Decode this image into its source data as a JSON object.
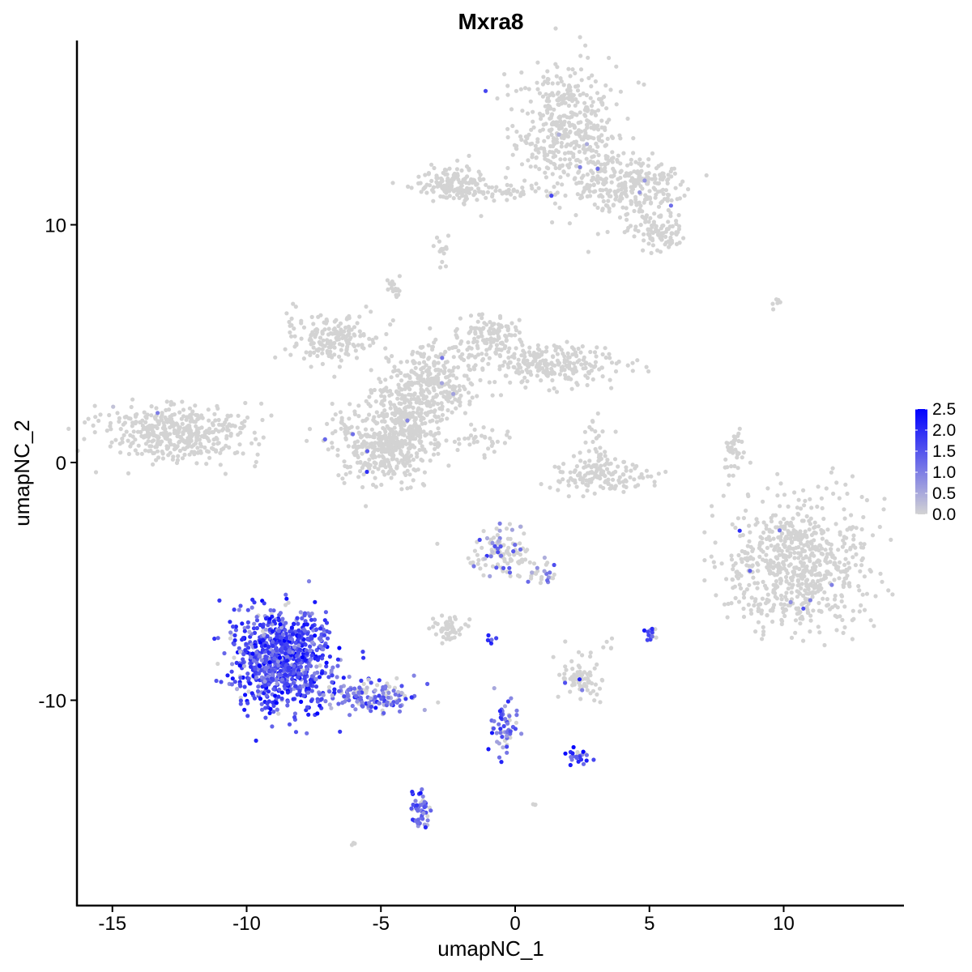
{
  "chart_data": {
    "type": "scatter",
    "title": "Mxra8",
    "xlabel": "umapNC_1",
    "ylabel": "umapNC_2",
    "xlim": [
      -16.3,
      14.5
    ],
    "ylim": [
      -18.6,
      17.8
    ],
    "xticks": [
      -15,
      -10,
      -5,
      0,
      5,
      10
    ],
    "yticks": [
      -10,
      0,
      10
    ],
    "xtick_labels": [
      "-15",
      "-10",
      "-5",
      "0",
      "5",
      "10"
    ],
    "ytick_labels": [
      "-10",
      "0",
      "10"
    ],
    "grid": false,
    "legend": {
      "placement": "right",
      "type": "colorbar",
      "low_color": "#D3D3D3",
      "high_color": "#0000FF",
      "range": [
        0,
        2.5
      ],
      "labels": [
        "2.5",
        "2.0",
        "1.5",
        "1.0",
        "0.5",
        "0.0"
      ],
      "values": [
        2.5,
        2.0,
        1.5,
        1.0,
        0.5,
        0.0
      ]
    },
    "clusters": [
      {
        "x": 1.9,
        "y": 14.0,
        "sx": 0.9,
        "sy": 1.3,
        "n": 420,
        "expr": 0.0,
        "frac_expr": 0.01
      },
      {
        "x": 4.6,
        "y": 11.6,
        "sx": 0.8,
        "sy": 0.6,
        "n": 220,
        "expr": 0.0,
        "frac_expr": 0.01
      },
      {
        "x": 5.3,
        "y": 9.7,
        "sx": 0.5,
        "sy": 0.4,
        "n": 90,
        "expr": 0.0,
        "frac_expr": 0.0
      },
      {
        "x": 3.0,
        "y": 12.0,
        "sx": 0.6,
        "sy": 1.0,
        "n": 80,
        "expr": 0.0,
        "frac_expr": 0.01
      },
      {
        "x": -2.3,
        "y": 11.7,
        "sx": 0.6,
        "sy": 0.4,
        "n": 160,
        "expr": 0.0,
        "frac_expr": 0.0
      },
      {
        "x": -0.3,
        "y": 11.4,
        "sx": 0.8,
        "sy": 0.15,
        "n": 40,
        "expr": 0.0,
        "frac_expr": 0.0
      },
      {
        "x": -2.8,
        "y": 9.0,
        "sx": 0.2,
        "sy": 0.3,
        "n": 15,
        "expr": 0.0,
        "frac_expr": 0.0
      },
      {
        "x": -3.2,
        "y": 3.2,
        "sx": 0.9,
        "sy": 0.9,
        "n": 320,
        "expr": 0.0,
        "frac_expr": 0.005
      },
      {
        "x": -6.8,
        "y": 5.3,
        "sx": 0.9,
        "sy": 0.5,
        "n": 180,
        "expr": 0.0,
        "frac_expr": 0.0
      },
      {
        "x": 1.4,
        "y": 4.1,
        "sx": 1.2,
        "sy": 0.4,
        "n": 230,
        "expr": 0.0,
        "frac_expr": 0.0
      },
      {
        "x": -1.0,
        "y": 5.3,
        "sx": 0.6,
        "sy": 0.5,
        "n": 120,
        "expr": 0.0,
        "frac_expr": 0.0
      },
      {
        "x": -5.0,
        "y": 0.7,
        "sx": 0.9,
        "sy": 0.8,
        "n": 300,
        "expr": 0.0,
        "frac_expr": 0.02
      },
      {
        "x": -4.2,
        "y": 1.5,
        "sx": 0.6,
        "sy": 1.2,
        "n": 200,
        "expr": 0.0,
        "frac_expr": 0.0
      },
      {
        "x": -4.5,
        "y": 7.3,
        "sx": 0.15,
        "sy": 0.2,
        "n": 20,
        "expr": 0.0,
        "frac_expr": 0.0
      },
      {
        "x": -1.8,
        "y": 1.0,
        "sx": 0.9,
        "sy": 0.3,
        "n": 40,
        "expr": 0.0,
        "frac_expr": 0.0
      },
      {
        "x": -12.7,
        "y": 1.2,
        "sx": 1.3,
        "sy": 0.6,
        "n": 420,
        "expr": 0.0,
        "frac_expr": 0.005
      },
      {
        "x": 3.2,
        "y": -0.6,
        "sx": 0.9,
        "sy": 0.35,
        "n": 130,
        "expr": 0.0,
        "frac_expr": 0.01
      },
      {
        "x": 3.0,
        "y": 0.6,
        "sx": 0.3,
        "sy": 0.5,
        "n": 40,
        "expr": 0.0,
        "frac_expr": 0.0
      },
      {
        "x": 10.5,
        "y": -4.4,
        "sx": 1.3,
        "sy": 1.4,
        "n": 700,
        "expr": 0.0,
        "frac_expr": 0.01
      },
      {
        "x": 8.1,
        "y": 0.4,
        "sx": 0.2,
        "sy": 0.5,
        "n": 40,
        "expr": 0.0,
        "frac_expr": 0.0
      },
      {
        "x": -8.7,
        "y": -8.3,
        "sx": 0.85,
        "sy": 1.0,
        "n": 900,
        "expr": 1.6,
        "frac_expr": 0.95
      },
      {
        "x": -5.5,
        "y": -9.8,
        "sx": 0.9,
        "sy": 0.35,
        "n": 160,
        "expr": 1.1,
        "frac_expr": 0.7
      },
      {
        "x": -0.5,
        "y": -3.8,
        "sx": 0.5,
        "sy": 0.5,
        "n": 120,
        "expr": 0.9,
        "frac_expr": 0.2
      },
      {
        "x": 1.0,
        "y": -4.9,
        "sx": 0.3,
        "sy": 0.5,
        "n": 25,
        "expr": 1.0,
        "frac_expr": 0.4
      },
      {
        "x": -2.5,
        "y": -7.0,
        "sx": 0.4,
        "sy": 0.2,
        "n": 50,
        "expr": 0.0,
        "frac_expr": 0.0
      },
      {
        "x": 2.4,
        "y": -9.1,
        "sx": 0.4,
        "sy": 0.5,
        "n": 70,
        "expr": 0.0,
        "frac_expr": 0.05
      },
      {
        "x": -0.4,
        "y": -11.0,
        "sx": 0.25,
        "sy": 0.6,
        "n": 60,
        "expr": 1.4,
        "frac_expr": 0.8
      },
      {
        "x": 2.4,
        "y": -12.4,
        "sx": 0.2,
        "sy": 0.15,
        "n": 25,
        "expr": 1.8,
        "frac_expr": 0.9
      },
      {
        "x": -3.5,
        "y": -14.6,
        "sx": 0.2,
        "sy": 0.5,
        "n": 50,
        "expr": 1.4,
        "frac_expr": 0.85
      },
      {
        "x": -0.9,
        "y": -7.4,
        "sx": 0.2,
        "sy": 0.15,
        "n": 6,
        "expr": 1.9,
        "frac_expr": 1.0
      },
      {
        "x": 5.1,
        "y": -7.3,
        "sx": 0.15,
        "sy": 0.2,
        "n": 15,
        "expr": 1.4,
        "frac_expr": 0.8
      },
      {
        "x": 3.5,
        "y": -7.6,
        "sx": 0.15,
        "sy": 0.15,
        "n": 5,
        "expr": 0.0,
        "frac_expr": 0.0
      },
      {
        "x": -6.0,
        "y": -16.0,
        "sx": 0.1,
        "sy": 0.05,
        "n": 3,
        "expr": 0.0,
        "frac_expr": 0.0
      },
      {
        "x": 0.7,
        "y": -14.4,
        "sx": 0.1,
        "sy": 0.05,
        "n": 3,
        "expr": 0.0,
        "frac_expr": 0.0
      },
      {
        "x": 9.8,
        "y": 6.7,
        "sx": 0.2,
        "sy": 0.15,
        "n": 6,
        "expr": 0.0,
        "frac_expr": 0.0
      }
    ]
  }
}
